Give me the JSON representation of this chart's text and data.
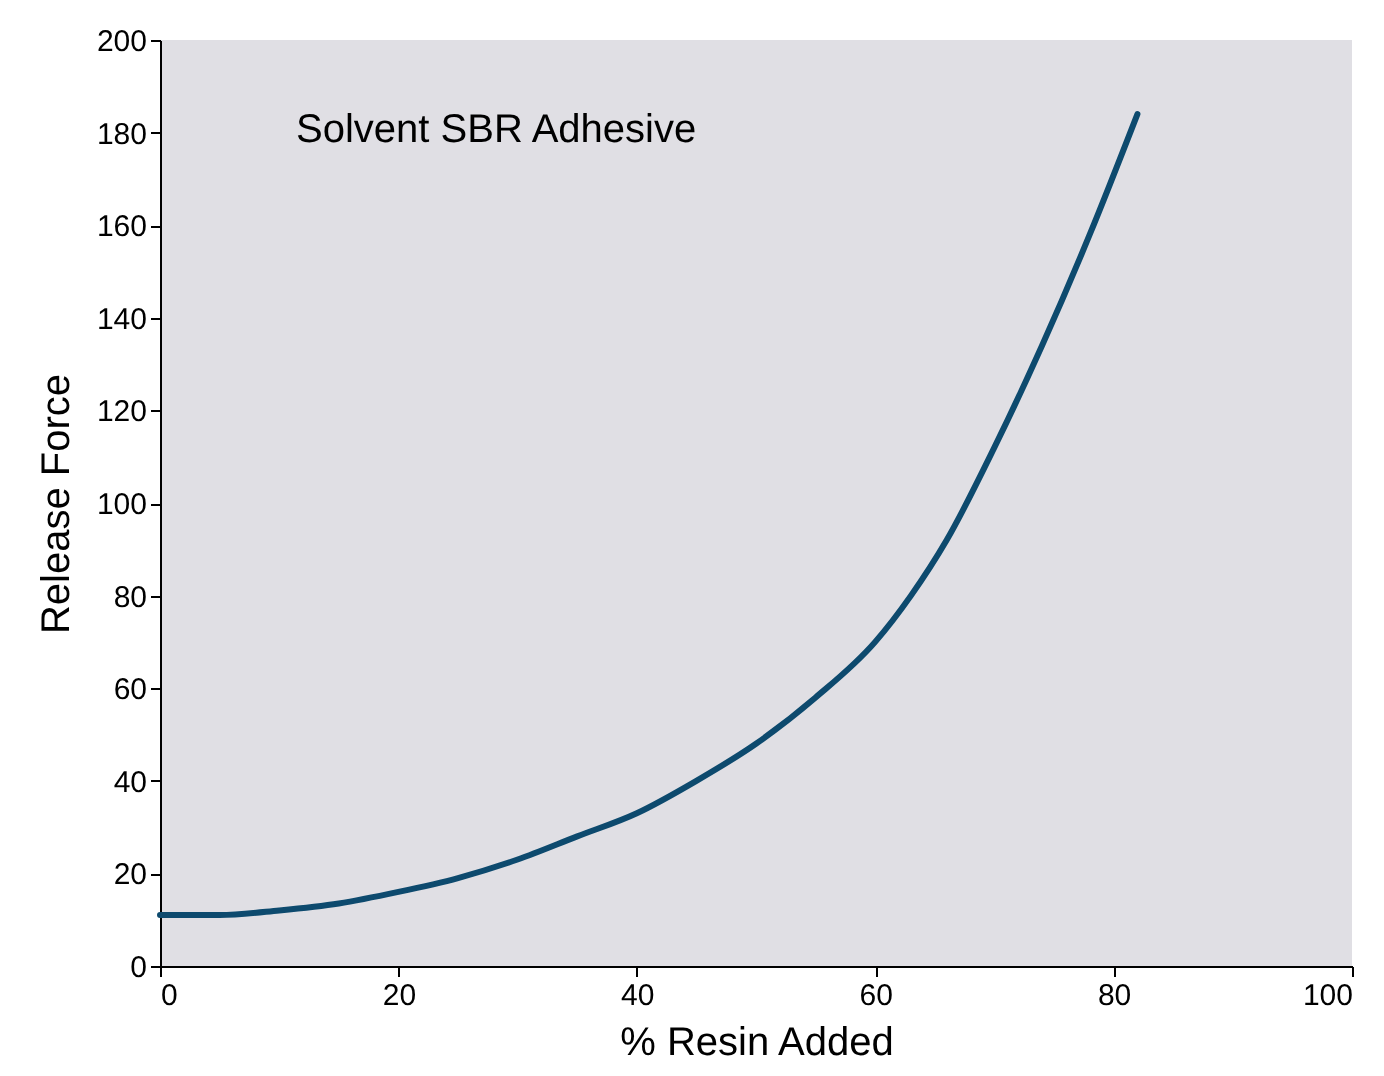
{
  "chart_data": {
    "type": "line",
    "xlabel": "% Resin Added",
    "ylabel": "Release Force",
    "annotations": [
      "Solvent SBR Adhesive"
    ],
    "x": [
      0,
      5,
      10,
      15,
      20,
      25,
      30,
      35,
      40,
      45,
      50,
      55,
      60,
      63,
      66,
      70,
      74,
      78,
      82
    ],
    "series": [
      {
        "color": "#0d4a6e",
        "values": [
          11,
          11,
          12,
          13.5,
          16,
          19,
          23,
          28,
          33,
          40,
          48,
          58,
          70,
          80,
          92,
          112,
          134,
          158,
          184
        ]
      }
    ],
    "xlim": [
      0,
      100
    ],
    "xticks": [
      0,
      20,
      40,
      60,
      80,
      100
    ],
    "ylim": [
      0,
      200
    ],
    "yticks": [
      0,
      20,
      40,
      60,
      80,
      100,
      120,
      140,
      160,
      180,
      200
    ],
    "grid": false,
    "marker": "none",
    "line_style": "solid"
  }
}
